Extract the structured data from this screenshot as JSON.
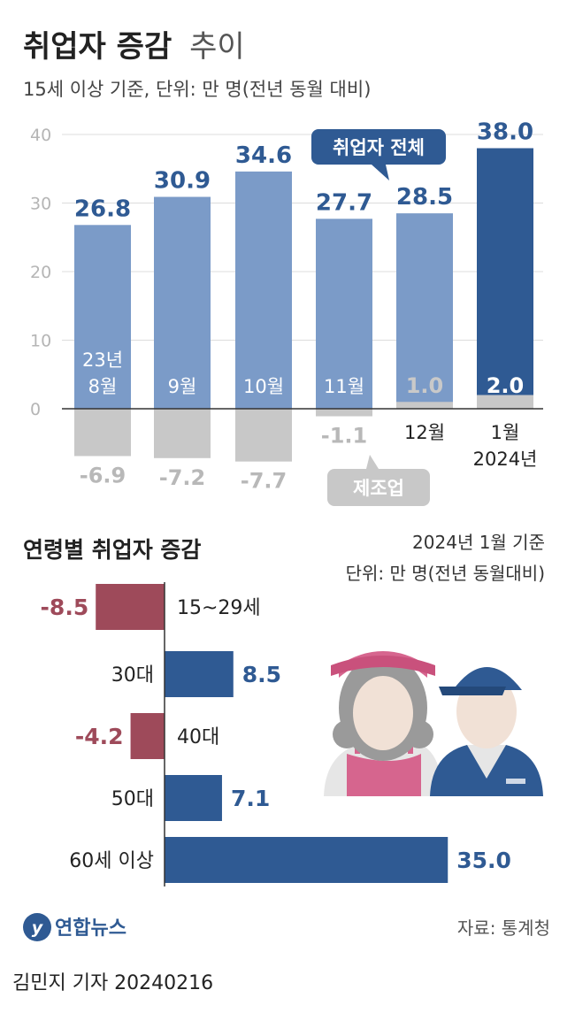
{
  "header": {
    "title_bold": "취업자 증감",
    "title_light": "추이",
    "subtitle": "15세 이상 기준, 단위: 만 명(전년 동월 대비)"
  },
  "chart_data": [
    {
      "type": "bar",
      "categories": [
        "23년 8월",
        "9월",
        "10월",
        "11월",
        "12월",
        "1월 2024년"
      ],
      "category_lines": [
        [
          "23년",
          "8월"
        ],
        [
          "9월"
        ],
        [
          "10월"
        ],
        [
          "11월"
        ],
        [
          "12월"
        ],
        [
          "1월",
          "2024년"
        ]
      ],
      "series": [
        {
          "name": "취업자 전체",
          "values": [
            26.8,
            30.9,
            34.6,
            27.7,
            28.5,
            38.0
          ]
        },
        {
          "name": "제조업",
          "values": [
            -6.9,
            -7.2,
            -7.7,
            -1.1,
            1.0,
            2.0
          ]
        }
      ],
      "value_labels_total": [
        "26.8",
        "30.9",
        "34.6",
        "27.7",
        "28.5",
        "38.0"
      ],
      "value_labels_mfg": [
        "-6.9",
        "-7.2",
        "-7.7",
        "-1.1",
        "1.0",
        "2.0"
      ],
      "yticks": [
        "0",
        "10",
        "20",
        "30",
        "40"
      ],
      "ylim": [
        -8,
        40
      ],
      "grid": true,
      "colors": {
        "total": "#7b9bc8",
        "total_highlight": "#2f5a93",
        "manufacturing": "#c8c8c8",
        "dark_label": "#2f5a93",
        "mfg_label": "#b8b8b8"
      }
    },
    {
      "type": "bar",
      "orientation": "horizontal",
      "title": "연령별 취업자 증감",
      "note_line1": "2024년 1월 기준",
      "note_line2": "단위: 만 명(전년 동월대비)",
      "categories": [
        "15~29세",
        "30대",
        "40대",
        "50대",
        "60세 이상"
      ],
      "values": [
        -8.5,
        8.5,
        -4.2,
        7.1,
        35.0
      ],
      "value_labels": [
        "-8.5",
        "8.5",
        "-4.2",
        "7.1",
        "35.0"
      ],
      "colors": {
        "positive": "#2f5a93",
        "negative": "#9e4a5a"
      }
    }
  ],
  "annotations": {
    "total_callout": "취업자 전체",
    "mfg_callout": "제조업"
  },
  "footer": {
    "logo_text": "연합뉴스",
    "source": "자료: 통계청",
    "byline": "김민지 기자  20240216"
  }
}
